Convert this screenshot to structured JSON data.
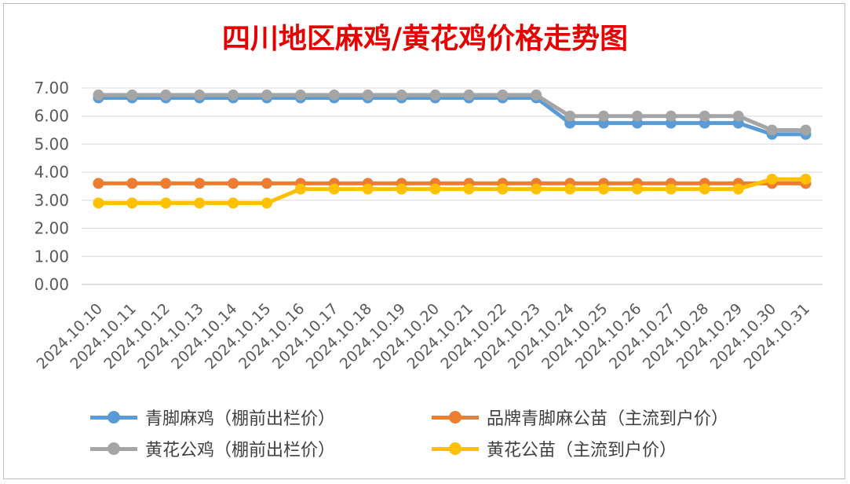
{
  "chart_data": {
    "type": "line",
    "title": "四川地区麻鸡/黄花鸡价格走势图",
    "x": [
      "2024.10.10",
      "2024.10.11",
      "2024.10.12",
      "2024.10.13",
      "2024.10.14",
      "2024.10.15",
      "2024.10.16",
      "2024.10.17",
      "2024.10.18",
      "2024.10.19",
      "2024.10.20",
      "2024.10.21",
      "2024.10.22",
      "2024.10.23",
      "2024.10.24",
      "2024.10.25",
      "2024.10.26",
      "2024.10.27",
      "2024.10.28",
      "2024.10.29",
      "2024.10.30",
      "2024.10.31"
    ],
    "ylim": [
      0,
      7
    ],
    "yticks": [
      "0.00",
      "1.00",
      "2.00",
      "3.00",
      "4.00",
      "5.00",
      "6.00",
      "7.00"
    ],
    "grid": true,
    "legend_position": "bottom",
    "series": [
      {
        "name": "青脚麻鸡（棚前出栏价）",
        "color": "#5b9bd5",
        "values": [
          6.65,
          6.65,
          6.65,
          6.65,
          6.65,
          6.65,
          6.65,
          6.65,
          6.65,
          6.65,
          6.65,
          6.65,
          6.65,
          6.65,
          5.75,
          5.75,
          5.75,
          5.75,
          5.75,
          5.75,
          5.35,
          5.35
        ]
      },
      {
        "name": "品牌青脚麻公苗（主流到户价）",
        "color": "#ed7d31",
        "values": [
          3.6,
          3.6,
          3.6,
          3.6,
          3.6,
          3.6,
          3.6,
          3.6,
          3.6,
          3.6,
          3.6,
          3.6,
          3.6,
          3.6,
          3.6,
          3.6,
          3.6,
          3.6,
          3.6,
          3.6,
          3.6,
          3.6
        ]
      },
      {
        "name": "黄花公鸡（棚前出栏价）",
        "color": "#a5a5a5",
        "values": [
          6.75,
          6.75,
          6.75,
          6.75,
          6.75,
          6.75,
          6.75,
          6.75,
          6.75,
          6.75,
          6.75,
          6.75,
          6.75,
          6.75,
          6.0,
          6.0,
          6.0,
          6.0,
          6.0,
          6.0,
          5.5,
          5.5
        ]
      },
      {
        "name": "黄花公苗（主流到户价）",
        "color": "#ffc000",
        "values": [
          2.9,
          2.9,
          2.9,
          2.9,
          2.9,
          2.9,
          3.4,
          3.4,
          3.4,
          3.4,
          3.4,
          3.4,
          3.4,
          3.4,
          3.4,
          3.4,
          3.4,
          3.4,
          3.4,
          3.4,
          3.75,
          3.75
        ]
      }
    ]
  }
}
